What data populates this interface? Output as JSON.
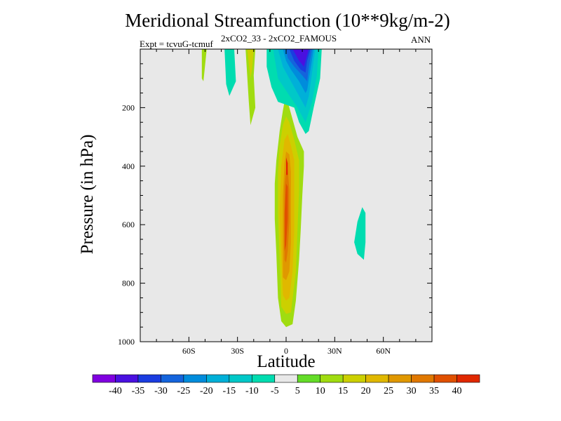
{
  "chart_data": {
    "type": "contour",
    "title": "Meridional Streamfunction (10**9kg/m-2)",
    "subtitle": "2xCO2_33 - 2xCO2_FAMOUS",
    "expt_label": "Expt = tcvuG-tcmuf",
    "season": "ANN",
    "xlabel": "Latitude",
    "ylabel": "Pressure (in hPa)",
    "xlim": [
      -90,
      90
    ],
    "ylim": [
      1000,
      0
    ],
    "x_ticks": [
      {
        "value": -60,
        "label": "60S"
      },
      {
        "value": -30,
        "label": "30S"
      },
      {
        "value": 0,
        "label": "0"
      },
      {
        "value": 30,
        "label": "30N"
      },
      {
        "value": 60,
        "label": "60N"
      }
    ],
    "y_ticks": [
      {
        "value": 200,
        "label": "200"
      },
      {
        "value": 400,
        "label": "400"
      },
      {
        "value": 600,
        "label": "600"
      },
      {
        "value": 800,
        "label": "800"
      },
      {
        "value": 1000,
        "label": "1000"
      }
    ],
    "background_color": "#e8e8e8",
    "colorbar": {
      "labels": [
        "-40",
        "-35",
        "-30",
        "-25",
        "-20",
        "-15",
        "-10",
        "-5",
        "5",
        "10",
        "15",
        "20",
        "25",
        "30",
        "35",
        "40"
      ],
      "colors": [
        "#8000e0",
        "#4a10e0",
        "#1a3ce0",
        "#1464dc",
        "#008cdc",
        "#00b0d8",
        "#00c8c8",
        "#00dcb0",
        "#e8e8e8",
        "#64dc28",
        "#a0dc10",
        "#ccd000",
        "#e0b800",
        "#e09800",
        "#e07800",
        "#e05000",
        "#e02800"
      ]
    },
    "contour_regions": [
      {
        "level": 10,
        "points": [
          [
            -3,
            930
          ],
          [
            -5,
            850
          ],
          [
            -6,
            700
          ],
          [
            -7,
            580
          ],
          [
            -7,
            460
          ],
          [
            -6,
            380
          ],
          [
            -4,
            280
          ],
          [
            -2,
            210
          ],
          [
            -1,
            180
          ],
          [
            1,
            180
          ],
          [
            3,
            220
          ],
          [
            7,
            300
          ],
          [
            11,
            350
          ],
          [
            11,
            400
          ],
          [
            10,
            500
          ],
          [
            9,
            620
          ],
          [
            8,
            720
          ],
          [
            6,
            860
          ],
          [
            4,
            940
          ],
          [
            0,
            950
          ]
        ]
      },
      {
        "level": 15,
        "points": [
          [
            -3,
            880
          ],
          [
            -4,
            720
          ],
          [
            -5,
            560
          ],
          [
            -5,
            420
          ],
          [
            -4,
            330
          ],
          [
            -2,
            260
          ],
          [
            0,
            230
          ],
          [
            2,
            250
          ],
          [
            5,
            310
          ],
          [
            8,
            380
          ],
          [
            8,
            480
          ],
          [
            7,
            620
          ],
          [
            6,
            760
          ],
          [
            3,
            900
          ],
          [
            0,
            905
          ]
        ]
      },
      {
        "level": 20,
        "points": [
          [
            -2,
            840
          ],
          [
            -3,
            700
          ],
          [
            -4,
            560
          ],
          [
            -3,
            400
          ],
          [
            -1,
            310
          ],
          [
            1,
            290
          ],
          [
            3,
            330
          ],
          [
            5,
            380
          ],
          [
            5,
            480
          ],
          [
            5,
            620
          ],
          [
            4,
            760
          ],
          [
            2,
            850
          ],
          [
            0,
            860
          ]
        ]
      },
      {
        "level": 25,
        "points": [
          [
            -2,
            780
          ],
          [
            -2,
            640
          ],
          [
            -2,
            500
          ],
          [
            -1,
            390
          ],
          [
            0,
            350
          ],
          [
            2,
            360
          ],
          [
            3,
            420
          ],
          [
            3,
            540
          ],
          [
            3,
            660
          ],
          [
            2,
            760
          ],
          [
            0,
            790
          ]
        ]
      },
      {
        "level": 30,
        "points": [
          [
            -1,
            720
          ],
          [
            -1,
            590
          ],
          [
            -1,
            470
          ],
          [
            0,
            410
          ],
          [
            1,
            410
          ],
          [
            2,
            480
          ],
          [
            2,
            590
          ],
          [
            1,
            690
          ],
          [
            0,
            730
          ]
        ]
      },
      {
        "level": 35,
        "points": [
          [
            -1,
            690
          ],
          [
            -1,
            560
          ],
          [
            0,
            460
          ],
          [
            1,
            470
          ],
          [
            1,
            580
          ],
          [
            0,
            670
          ]
        ]
      },
      {
        "level": 40,
        "points": [
          [
            0,
            370
          ],
          [
            1,
            390
          ],
          [
            1,
            430
          ],
          [
            0,
            430
          ]
        ]
      },
      {
        "level": -5,
        "points": [
          [
            -12,
            0
          ],
          [
            -6,
            0
          ],
          [
            8,
            0
          ],
          [
            22,
            0
          ],
          [
            21,
            100
          ],
          [
            17,
            200
          ],
          [
            14,
            280
          ],
          [
            12,
            290
          ],
          [
            8,
            250
          ],
          [
            5,
            200
          ],
          [
            -5,
            180
          ],
          [
            -9,
            130
          ],
          [
            -12,
            60
          ]
        ]
      },
      {
        "level": -10,
        "points": [
          [
            -8,
            0
          ],
          [
            20,
            0
          ],
          [
            19,
            90
          ],
          [
            16,
            180
          ],
          [
            12,
            250
          ],
          [
            7,
            200
          ],
          [
            1,
            150
          ],
          [
            -5,
            100
          ]
        ]
      },
      {
        "level": -15,
        "points": [
          [
            -5,
            0
          ],
          [
            18,
            0
          ],
          [
            16,
            80
          ],
          [
            14,
            160
          ],
          [
            12,
            200
          ],
          [
            7,
            150
          ],
          [
            2,
            100
          ],
          [
            -2,
            60
          ]
        ]
      },
      {
        "level": -20,
        "points": [
          [
            -2,
            0
          ],
          [
            17,
            0
          ],
          [
            15,
            70
          ],
          [
            13,
            140
          ],
          [
            12,
            150
          ],
          [
            8,
            110
          ],
          [
            3,
            70
          ],
          [
            0,
            40
          ]
        ]
      },
      {
        "level": -25,
        "points": [
          [
            0,
            0
          ],
          [
            16,
            0
          ],
          [
            14,
            60
          ],
          [
            13,
            110
          ],
          [
            10,
            90
          ],
          [
            5,
            60
          ],
          [
            1,
            30
          ]
        ]
      },
      {
        "level": -30,
        "points": [
          [
            2,
            0
          ],
          [
            15,
            0
          ],
          [
            13,
            40
          ],
          [
            12,
            80
          ],
          [
            9,
            70
          ],
          [
            5,
            40
          ]
        ]
      },
      {
        "level": -35,
        "points": [
          [
            4,
            0
          ],
          [
            14,
            0
          ],
          [
            12,
            40
          ],
          [
            11,
            60
          ],
          [
            8,
            40
          ],
          [
            6,
            20
          ]
        ]
      },
      {
        "level": 10,
        "points": [
          [
            -52,
            0
          ],
          [
            -49,
            0
          ],
          [
            -51,
            110
          ],
          [
            -52,
            100
          ]
        ]
      },
      {
        "level": -5,
        "points": [
          [
            -38,
            0
          ],
          [
            -32,
            0
          ],
          [
            -31,
            110
          ],
          [
            -35,
            160
          ],
          [
            -37,
            120
          ]
        ]
      },
      {
        "level": 10,
        "points": [
          [
            -25,
            0
          ],
          [
            -19,
            0
          ],
          [
            -20,
            90
          ],
          [
            -19,
            200
          ],
          [
            -22,
            260
          ],
          [
            -23,
            180
          ]
        ]
      },
      {
        "level": 15,
        "points": [
          [
            -24,
            0
          ],
          [
            -20,
            0
          ],
          [
            -21,
            70
          ],
          [
            -22,
            100
          ]
        ]
      },
      {
        "level": -5,
        "points": [
          [
            42,
            660
          ],
          [
            44,
            590
          ],
          [
            47,
            540
          ],
          [
            49,
            560
          ],
          [
            49,
            660
          ],
          [
            48,
            720
          ],
          [
            44,
            700
          ]
        ]
      }
    ]
  }
}
